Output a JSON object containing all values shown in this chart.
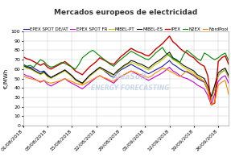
{
  "title": "Mercados europeos de electricidad",
  "ylabel": "€/MWh",
  "ylim": [
    0,
    100
  ],
  "yticks": [
    0,
    10,
    20,
    30,
    40,
    50,
    60,
    70,
    80,
    90,
    100
  ],
  "xtick_labels": [
    "01/08/2018",
    "08/08/2018",
    "15/08/2018",
    "22/08/2018",
    "29/08/2018",
    "05/09/2018",
    "12/09/2018",
    "19/09/2018",
    "26/09/2018"
  ],
  "xtick_positions": [
    0,
    7,
    14,
    21,
    28,
    35,
    42,
    49,
    56
  ],
  "n_points": 60,
  "series": {
    "EPEX SPOT DE/AT": {
      "color": "#1a1ab5",
      "lw": 0.8,
      "values": [
        65,
        63,
        62,
        61,
        59,
        57,
        58,
        54,
        51,
        53,
        55,
        57,
        59,
        56,
        53,
        49,
        47,
        45,
        49,
        53,
        56,
        59,
        61,
        59,
        56,
        53,
        51,
        56,
        59,
        61,
        63,
        65,
        63,
        61,
        59,
        57,
        55,
        57,
        59,
        61,
        63,
        66,
        69,
        65,
        63,
        60,
        58,
        57,
        55,
        53,
        50,
        48,
        46,
        38,
        28,
        40,
        53,
        57,
        59,
        51
      ]
    },
    "EPEX SPOT FR": {
      "color": "#cc00cc",
      "lw": 0.8,
      "values": [
        55,
        53,
        52,
        50,
        48,
        46,
        48,
        44,
        42,
        44,
        46,
        48,
        50,
        47,
        45,
        43,
        41,
        39,
        42,
        45,
        48,
        51,
        53,
        51,
        49,
        47,
        45,
        49,
        52,
        54,
        56,
        58,
        56,
        54,
        52,
        50,
        48,
        50,
        52,
        54,
        56,
        59,
        62,
        58,
        56,
        53,
        51,
        50,
        48,
        46,
        43,
        41,
        39,
        32,
        22,
        34,
        47,
        51,
        53,
        45
      ]
    },
    "MIBEL-PT": {
      "color": "#cccc00",
      "lw": 0.8,
      "values": [
        63,
        61,
        60,
        58,
        56,
        54,
        56,
        52,
        50,
        52,
        54,
        56,
        58,
        55,
        52,
        48,
        46,
        44,
        48,
        52,
        55,
        58,
        61,
        59,
        57,
        55,
        53,
        57,
        60,
        63,
        65,
        67,
        66,
        64,
        63,
        61,
        59,
        62,
        65,
        67,
        70,
        73,
        76,
        70,
        68,
        65,
        62,
        60,
        58,
        56,
        52,
        50,
        47,
        39,
        28,
        40,
        53,
        57,
        59,
        51
      ]
    },
    "MIBEL-ES": {
      "color": "#111111",
      "lw": 0.8,
      "values": [
        64,
        62,
        61,
        59,
        57,
        55,
        57,
        53,
        51,
        53,
        55,
        57,
        59,
        56,
        53,
        49,
        47,
        45,
        49,
        53,
        56,
        59,
        62,
        60,
        58,
        56,
        54,
        58,
        61,
        64,
        66,
        69,
        68,
        66,
        65,
        63,
        61,
        64,
        67,
        69,
        72,
        75,
        78,
        72,
        70,
        67,
        64,
        62,
        60,
        58,
        54,
        52,
        50,
        42,
        31,
        43,
        56,
        59,
        61,
        53
      ]
    },
    "IPEX": {
      "color": "#cc0000",
      "lw": 1.0,
      "values": [
        73,
        71,
        70,
        68,
        66,
        64,
        66,
        62,
        60,
        62,
        64,
        66,
        68,
        65,
        62,
        58,
        56,
        54,
        58,
        62,
        65,
        68,
        72,
        70,
        68,
        66,
        65,
        69,
        73,
        76,
        79,
        82,
        80,
        78,
        77,
        75,
        74,
        77,
        81,
        84,
        87,
        91,
        95,
        89,
        86,
        82,
        79,
        77,
        74,
        72,
        68,
        65,
        63,
        53,
        22,
        24,
        68,
        72,
        74,
        65
      ]
    },
    "N2EX": {
      "color": "#008800",
      "lw": 0.8,
      "values": [
        65,
        63,
        64,
        62,
        66,
        70,
        68,
        64,
        62,
        63,
        65,
        67,
        66,
        64,
        62,
        60,
        65,
        72,
        75,
        78,
        80,
        77,
        74,
        71,
        68,
        65,
        63,
        67,
        70,
        73,
        76,
        79,
        77,
        75,
        73,
        71,
        70,
        73,
        77,
        80,
        83,
        77,
        74,
        71,
        69,
        67,
        75,
        80,
        77,
        74,
        71,
        69,
        77,
        75,
        72,
        70,
        72,
        75,
        77,
        69
      ]
    },
    "NordPool": {
      "color": "#ff8800",
      "lw": 0.8,
      "values": [
        53,
        51,
        50,
        49,
        48,
        47,
        48,
        46,
        45,
        46,
        47,
        48,
        50,
        48,
        47,
        45,
        44,
        43,
        45,
        47,
        49,
        51,
        53,
        51,
        50,
        48,
        47,
        50,
        52,
        54,
        56,
        58,
        57,
        55,
        54,
        52,
        51,
        53,
        56,
        58,
        61,
        60,
        58,
        56,
        54,
        52,
        55,
        58,
        56,
        54,
        51,
        49,
        47,
        37,
        22,
        25,
        43,
        46,
        48,
        33
      ]
    }
  },
  "background_color": "#ffffff",
  "grid_color": "#cccccc",
  "watermark_line1": "AleaSoft",
  "watermark_line2": "ENERGY FORECASTING",
  "title_fontsize": 6.5,
  "legend_fontsize": 4.0,
  "axis_fontsize": 5,
  "tick_fontsize": 4.5
}
